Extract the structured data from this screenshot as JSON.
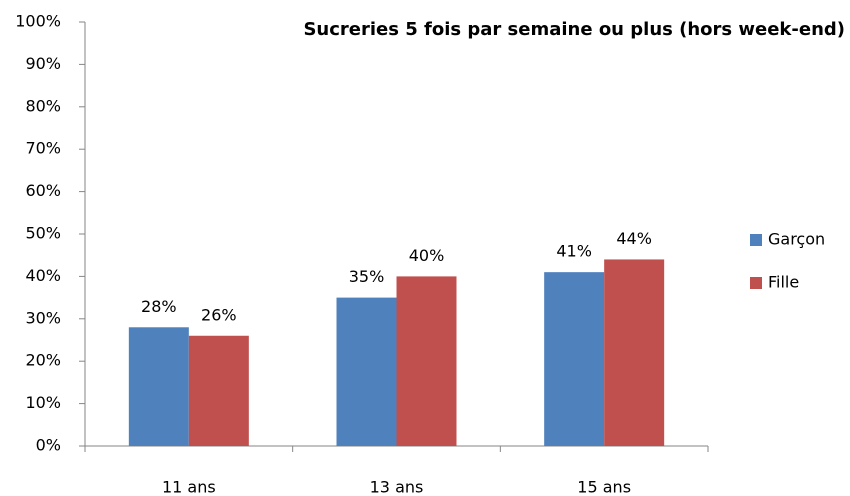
{
  "chart_data": {
    "type": "bar",
    "title": "Sucreries 5 fois par semaine ou plus (hors week-end)",
    "categories": [
      "11 ans",
      "13 ans",
      "15 ans"
    ],
    "series": [
      {
        "name": "Garçon",
        "color": "#4f81bd",
        "values": [
          28,
          35,
          41
        ],
        "value_labels": [
          "28%",
          "35%",
          "41%"
        ]
      },
      {
        "name": "Fille",
        "color": "#c0504d",
        "values": [
          26,
          40,
          44
        ],
        "value_labels": [
          "26%",
          "40%",
          "44%"
        ]
      }
    ],
    "ylim": [
      0,
      100
    ],
    "yticks": [
      {
        "value": 0,
        "label": "0%"
      },
      {
        "value": 10,
        "label": "10%"
      },
      {
        "value": 20,
        "label": "20%"
      },
      {
        "value": 30,
        "label": "30%"
      },
      {
        "value": 40,
        "label": "40%"
      },
      {
        "value": 50,
        "label": "50%"
      },
      {
        "value": 60,
        "label": "60%"
      },
      {
        "value": 70,
        "label": "70%"
      },
      {
        "value": 80,
        "label": "80%"
      },
      {
        "value": 90,
        "label": "90%"
      },
      {
        "value": 100,
        "label": "100%"
      }
    ],
    "grid": false,
    "legend": "right"
  }
}
